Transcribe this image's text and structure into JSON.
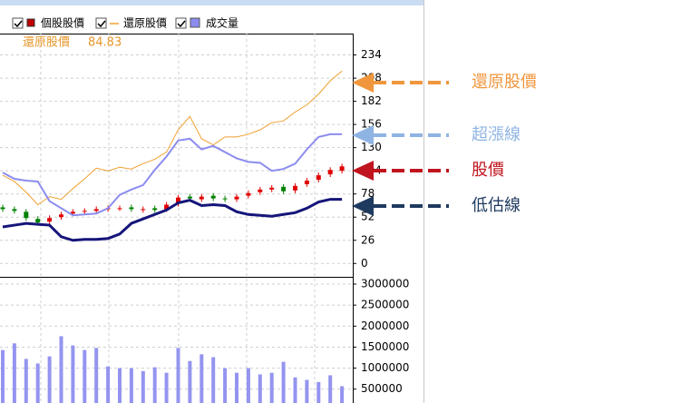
{
  "chart_data": [
    {
      "type": "candlestick-line",
      "readout": 84.83,
      "ylim": [
        -15,
        258
      ],
      "yticks": [
        0,
        26,
        52,
        78,
        104,
        130,
        156,
        182,
        208,
        234
      ],
      "grid": true,
      "categories": [
        null,
        null,
        null,
        null,
        null,
        null,
        null,
        null,
        null,
        null,
        null,
        null,
        null,
        null,
        null,
        null,
        null,
        null,
        null,
        null,
        null,
        null,
        null,
        null,
        null,
        null,
        null,
        null,
        null,
        null
      ],
      "series": [
        {
          "name": "個股股價",
          "type": "candlestick",
          "color": "#e00000",
          "down_color": "#008000",
          "open": [
            63,
            61,
            58,
            50,
            47,
            52,
            56,
            58,
            59,
            61,
            62,
            63,
            60,
            62,
            61,
            67,
            75,
            72,
            76,
            73,
            72,
            76,
            80,
            83,
            86,
            82,
            89,
            94,
            100,
            104
          ],
          "high": [
            66,
            64,
            61,
            53,
            54,
            58,
            61,
            62,
            64,
            65,
            65,
            66,
            64,
            65,
            69,
            77,
            78,
            78,
            79,
            76,
            78,
            82,
            86,
            88,
            89,
            90,
            96,
            102,
            108,
            112
          ],
          "low": [
            58,
            56,
            48,
            43,
            44,
            49,
            53,
            55,
            56,
            58,
            59,
            58,
            57,
            57,
            58,
            64,
            70,
            69,
            70,
            69,
            69,
            73,
            77,
            80,
            78,
            79,
            86,
            91,
            97,
            101
          ],
          "values": [
            61,
            59,
            51,
            46,
            51,
            55,
            58,
            59,
            61,
            62,
            62,
            61,
            61,
            60,
            66,
            74,
            73,
            75,
            73,
            72,
            75,
            79,
            83,
            85,
            81,
            87,
            93,
            99,
            105,
            109
          ]
        },
        {
          "name": "還原股價",
          "type": "line",
          "color": "#f0a030",
          "width": 1,
          "values": [
            99,
            92,
            80,
            66,
            75,
            72,
            84,
            95,
            107,
            104,
            108,
            106,
            112,
            117,
            125,
            150,
            165,
            140,
            133,
            142,
            142,
            145,
            150,
            158,
            160,
            170,
            178,
            190,
            205,
            216
          ]
        },
        {
          "type": "line",
          "color": "#8c8cf0",
          "width": 2,
          "values": [
            102,
            95,
            93,
            92,
            70,
            62,
            54,
            55,
            56,
            62,
            77,
            83,
            88,
            105,
            120,
            138,
            140,
            128,
            132,
            125,
            118,
            114,
            113,
            104,
            106,
            112,
            128,
            142,
            145,
            145
          ]
        },
        {
          "type": "line",
          "color": "#15157a",
          "width": 3,
          "values": [
            41,
            43,
            45,
            44,
            43,
            30,
            26,
            27,
            27,
            28,
            33,
            45,
            50,
            55,
            60,
            68,
            71,
            65,
            66,
            65,
            58,
            55,
            54,
            53,
            55,
            57,
            62,
            69,
            72,
            72
          ]
        }
      ]
    },
    {
      "type": "bar",
      "name": "成交量",
      "color": "#9494f0",
      "ylim": [
        170000,
        3130000
      ],
      "yticks": [
        500000,
        1000000,
        1500000,
        2000000,
        2500000,
        3000000
      ],
      "grid": true,
      "values": [
        1430000,
        1590000,
        1220000,
        1110000,
        1280000,
        1760000,
        1540000,
        1430000,
        1480000,
        1040000,
        1000000,
        1000000,
        930000,
        1020000,
        890000,
        1480000,
        1170000,
        1330000,
        1260000,
        1000000,
        890000,
        1000000,
        850000,
        890000,
        1150000,
        780000,
        720000,
        670000,
        830000,
        570000
      ]
    }
  ],
  "annotations": [
    {
      "label": "還原股價",
      "color": "#f0963c"
    },
    {
      "label": "超漲線",
      "color": "#8fb4e3"
    },
    {
      "label": "股價",
      "color": "#c0141e"
    },
    {
      "label": "低估線",
      "color": "#1f3a5f"
    }
  ]
}
